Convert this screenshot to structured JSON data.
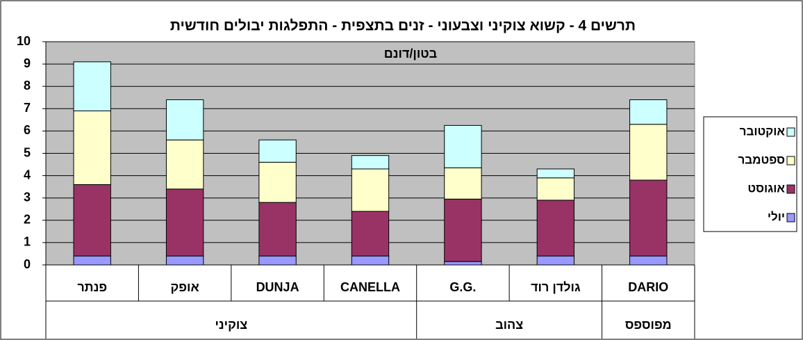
{
  "chart_data": {
    "type": "bar",
    "stacked": true,
    "title": "תרשים 4 - קשוא צוקיני וצבעוני - זנים בתצפית - התפלגות יבולים חודשית",
    "subtitle": "בטון/דונם",
    "categories": [
      "פנתר",
      "אופק",
      "DUNJA",
      "CANELLA",
      "G.G.",
      "גולדן רוד",
      "DARIO"
    ],
    "category_groups": [
      "צוקיני",
      "צוקיני",
      "צוקיני",
      "צוקיני",
      "צהוב",
      "צהוב",
      "מפוספס"
    ],
    "series": [
      {
        "name": "יולי",
        "color": "#9999ff",
        "values": [
          0.4,
          0.4,
          0.4,
          0.4,
          0.15,
          0.4,
          0.4
        ]
      },
      {
        "name": "אוגוסט",
        "color": "#993366",
        "values": [
          3.2,
          3.0,
          2.4,
          2.0,
          2.8,
          2.5,
          3.4
        ]
      },
      {
        "name": "ספטמבר",
        "color": "#ffffcc",
        "values": [
          3.3,
          2.2,
          1.8,
          1.9,
          1.4,
          1.0,
          2.5
        ]
      },
      {
        "name": "אוקטובר",
        "color": "#ccffff",
        "values": [
          2.2,
          1.8,
          1.0,
          0.6,
          1.9,
          0.4,
          1.1
        ]
      }
    ],
    "ylim": [
      0,
      10
    ],
    "yticks": [
      0,
      1,
      2,
      3,
      4,
      5,
      6,
      7,
      8,
      9,
      10
    ],
    "grid": true,
    "legend": "right",
    "plot_background": "#c0c0c0"
  }
}
